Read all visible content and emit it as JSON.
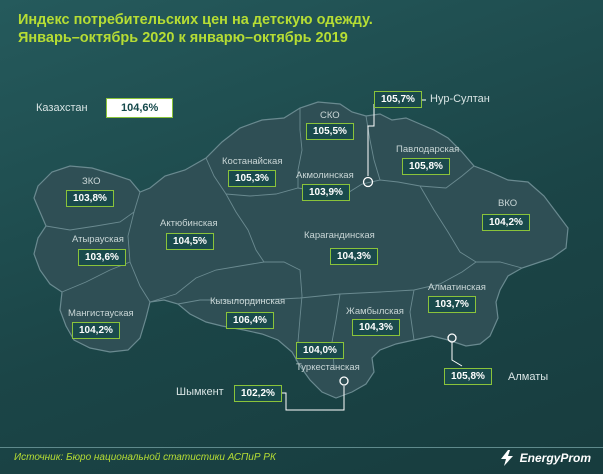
{
  "title": {
    "line1": "Индекс потребительских цен на детскую одежду.",
    "line2": "Январь–октябрь 2020 к январю–октябрь 2019"
  },
  "country": {
    "name": "Казахстан",
    "value": "104,6%"
  },
  "cities": [
    {
      "id": "nur-sultan",
      "name": "Нур-Султан",
      "value": "105,7%"
    },
    {
      "id": "shymkent",
      "name": "Шымкент",
      "value": "102,2%"
    },
    {
      "id": "almaty",
      "name": "Алматы",
      "value": "105,8%"
    }
  ],
  "regions": [
    {
      "id": "sko",
      "name": "СКО",
      "value": "105,5%"
    },
    {
      "id": "pavlodar",
      "name": "Павлодарская",
      "value": "105,8%"
    },
    {
      "id": "kostanay",
      "name": "Костанайская",
      "value": "105,3%"
    },
    {
      "id": "akmola",
      "name": "Акмолинская",
      "value": "103,9%"
    },
    {
      "id": "zko",
      "name": "ЗКО",
      "value": "103,8%"
    },
    {
      "id": "vko",
      "name": "ВКО",
      "value": "104,2%"
    },
    {
      "id": "aktobe",
      "name": "Актюбинская",
      "value": "104,5%"
    },
    {
      "id": "atyrau",
      "name": "Атырауская",
      "value": "103,6%"
    },
    {
      "id": "karaganda",
      "name": "Карагандинская",
      "value": "104,3%"
    },
    {
      "id": "almaty-region",
      "name": "Алматинская",
      "value": "103,7%"
    },
    {
      "id": "kyzylorda",
      "name": "Кызылординская",
      "value": "106,4%"
    },
    {
      "id": "mangystau",
      "name": "Мангистауская",
      "value": "104,2%"
    },
    {
      "id": "zhambyl",
      "name": "Жамбылская",
      "value": "104,3%"
    },
    {
      "id": "turkestan",
      "name": "Туркестанская",
      "value": "104,0%"
    }
  ],
  "footer": {
    "source": "Источник: Бюро национальной статистики АСПиР РК",
    "logo": "EnergyProm"
  },
  "colors": {
    "accent": "#b6dd34",
    "background": "#1d4a4c",
    "map_fill": "#2f4f55",
    "border": "#8ac33a"
  }
}
